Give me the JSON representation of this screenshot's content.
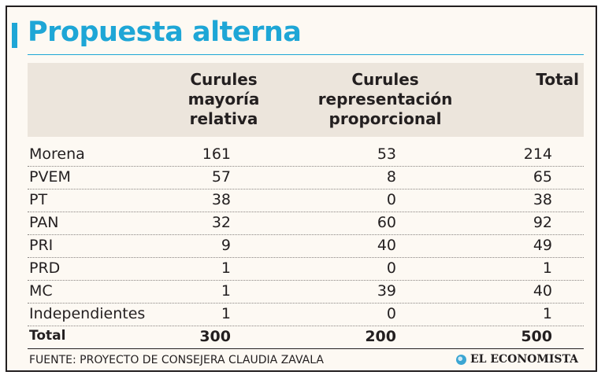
{
  "chart_data": {
    "type": "table",
    "title": "Propuesta alterna",
    "columns": [
      "",
      "Curules\nmayoría\nrelativa",
      "Curules\nrepresentación\nproporcional",
      "Total"
    ],
    "rows": [
      {
        "name": "Morena",
        "values": [
          "161",
          "53",
          "214"
        ]
      },
      {
        "name": "PVEM",
        "values": [
          "57",
          "8",
          "65"
        ]
      },
      {
        "name": "PT",
        "values": [
          "38",
          "0",
          "38"
        ]
      },
      {
        "name": "PAN",
        "values": [
          "32",
          "60",
          "92"
        ]
      },
      {
        "name": "PRI",
        "values": [
          "9",
          "40",
          "49"
        ]
      },
      {
        "name": "PRD",
        "values": [
          "1",
          "0",
          "1"
        ]
      },
      {
        "name": "MC",
        "values": [
          "1",
          "39",
          "40"
        ]
      },
      {
        "name": "Independientes",
        "values": [
          "1",
          "0",
          "1"
        ]
      }
    ],
    "total": {
      "name": "Total",
      "values": [
        "300",
        "200",
        "500"
      ]
    },
    "source": "FUENTE: PROYECTO DE CONSEJERA CLAUDIA ZAVALA",
    "brand": "EL ECONOMISTA"
  },
  "colors": {
    "accent": "#1ea6d6",
    "header_band": "#ece5dc",
    "background": "#fdf9f3",
    "text": "#231f20"
  }
}
